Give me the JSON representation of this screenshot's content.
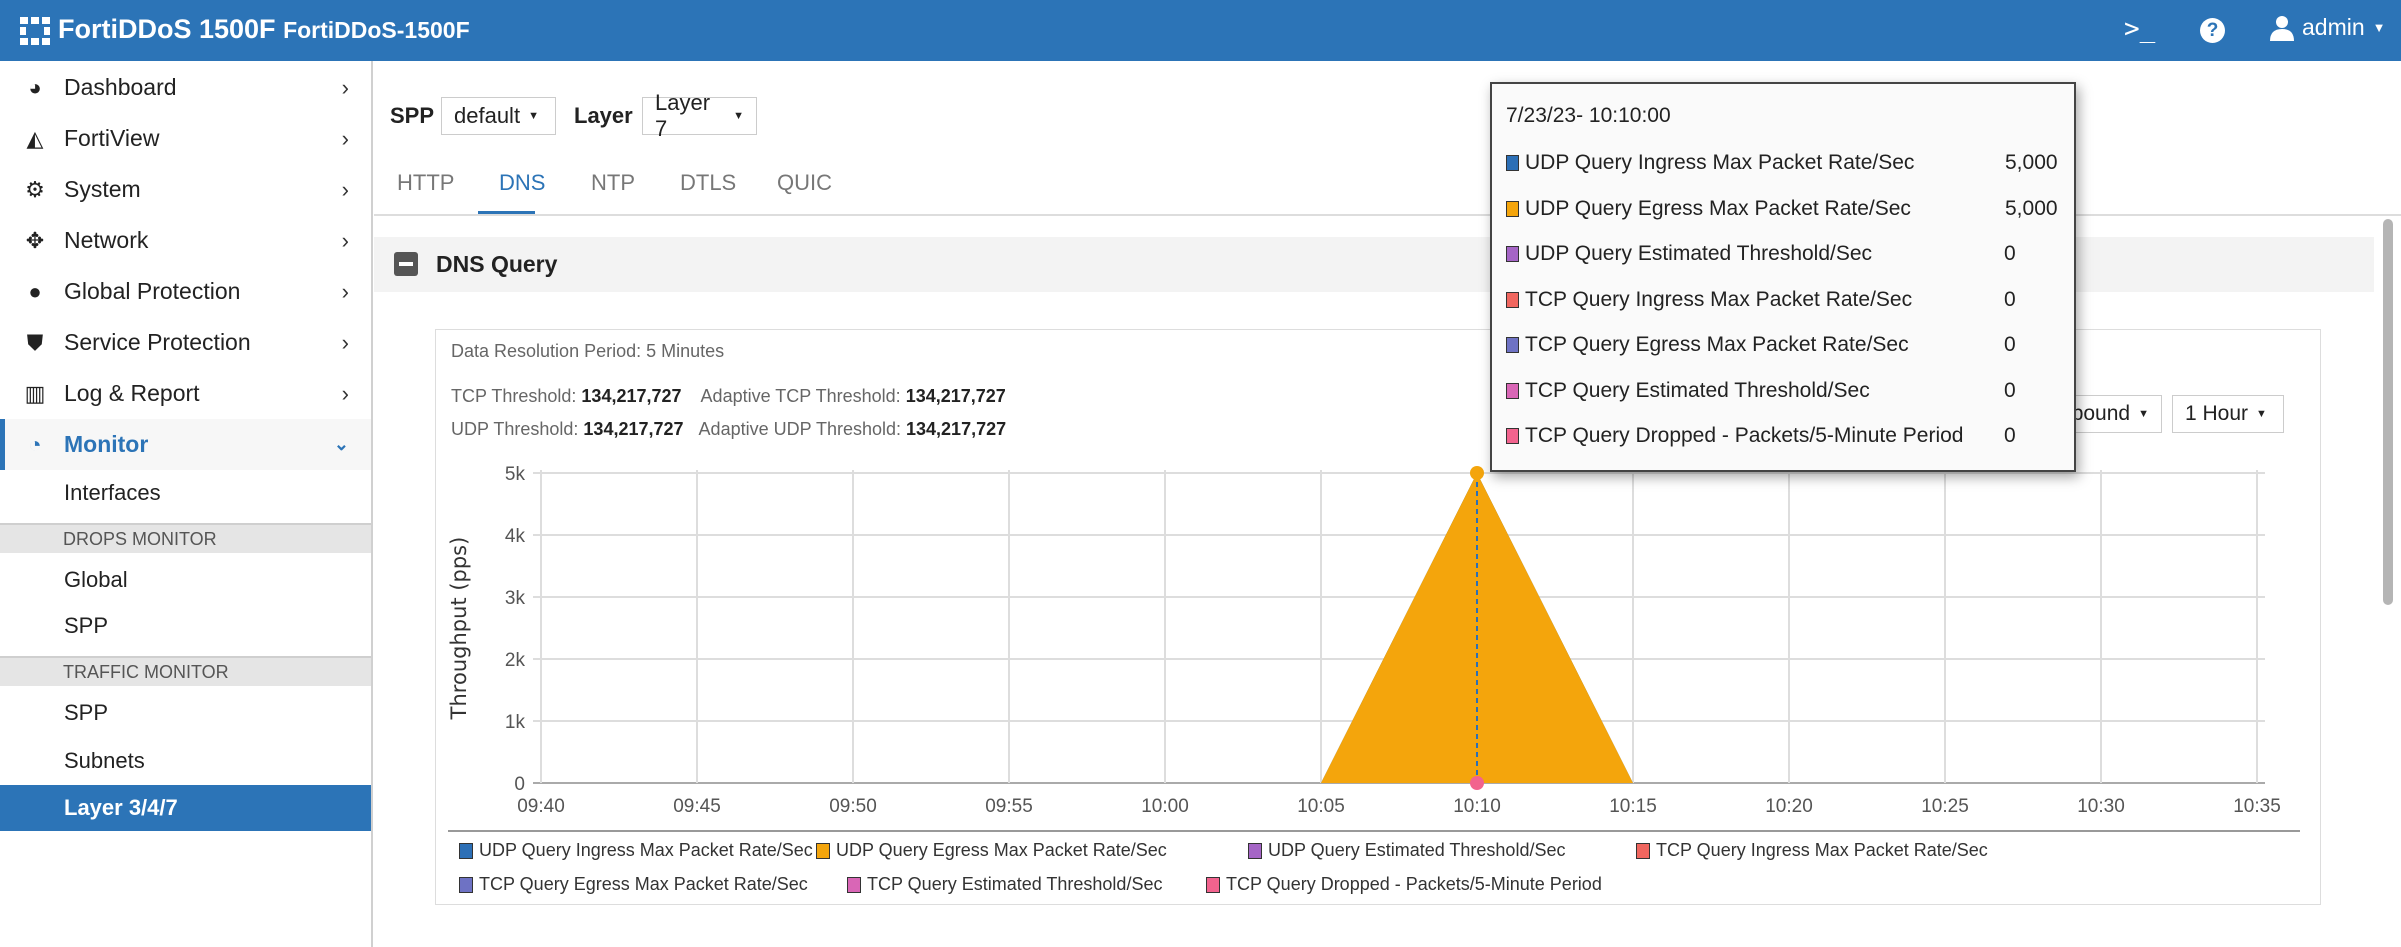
{
  "header": {
    "title": "FortiDDoS 1500F",
    "subtitle": "FortiDDoS-1500F",
    "cli_icon": "terminal-icon",
    "help_icon": "question-circle-icon",
    "user": "admin"
  },
  "sidebar": {
    "items": [
      {
        "label": "Dashboard",
        "icon": "dashboard-icon"
      },
      {
        "label": "FortiView",
        "icon": "area-chart-icon"
      },
      {
        "label": "System",
        "icon": "gear-icon"
      },
      {
        "label": "Network",
        "icon": "arrows-icon"
      },
      {
        "label": "Global Protection",
        "icon": "globe-icon"
      },
      {
        "label": "Service Protection",
        "icon": "shield-icon"
      },
      {
        "label": "Log & Report",
        "icon": "bar-chart-icon"
      },
      {
        "label": "Monitor",
        "icon": "pie-chart-icon"
      }
    ],
    "monitor_sub": {
      "interfaces": "Interfaces",
      "drops_header": "DROPS MONITOR",
      "drops": [
        "Global",
        "SPP"
      ],
      "traffic_header": "TRAFFIC MONITOR",
      "traffic": [
        "SPP",
        "Subnets",
        "Layer 3/4/7"
      ]
    }
  },
  "filters": {
    "spp_label": "SPP",
    "spp_value": "default",
    "layer_label": "Layer",
    "layer_value": "Layer 7"
  },
  "tabs": [
    "HTTP",
    "DNS",
    "NTP",
    "DTLS",
    "QUIC"
  ],
  "active_tab": "DNS",
  "panel": {
    "title": "DNS Query",
    "resolution": "Data Resolution Period: 5 Minutes",
    "tcp_threshold_label": "TCP Threshold:",
    "tcp_threshold": "134,217,727",
    "adaptive_tcp_label": "Adaptive TCP Threshold:",
    "adaptive_tcp": "134,217,727",
    "udp_threshold_label": "UDP Threshold:",
    "udp_threshold": "134,217,727",
    "adaptive_udp_label": "Adaptive UDP Threshold:",
    "adaptive_udp": "134,217,727",
    "direction_value": "Inbound",
    "period_value": "1 Hour"
  },
  "tooltip": {
    "time": "7/23/23- 10:10:00",
    "rows": [
      {
        "label": "UDP Query Ingress Max Packet Rate/Sec",
        "value": "5,000"
      },
      {
        "label": "UDP Query Egress Max Packet Rate/Sec",
        "value": "5,000"
      },
      {
        "label": "UDP Query Estimated Threshold/Sec",
        "value": "0"
      },
      {
        "label": "TCP Query Ingress Max Packet Rate/Sec",
        "value": "0"
      },
      {
        "label": "TCP Query Egress Max Packet Rate/Sec",
        "value": "0"
      },
      {
        "label": "TCP Query Estimated Threshold/Sec",
        "value": "0"
      },
      {
        "label": "TCP Query Dropped - Packets/5-Minute Period",
        "value": "0"
      }
    ]
  },
  "chart_data": {
    "type": "area",
    "ylabel": "Throughput (pps)",
    "xlabel": "",
    "ylim": [
      0,
      5000
    ],
    "yticks": [
      "0",
      "1k",
      "2k",
      "3k",
      "4k",
      "5k"
    ],
    "ytick_values": [
      0,
      1000,
      2000,
      3000,
      4000,
      5000
    ],
    "x": [
      "09:40",
      "09:45",
      "09:50",
      "09:55",
      "10:00",
      "10:05",
      "10:10",
      "10:15",
      "10:20",
      "10:25",
      "10:30",
      "10:35"
    ],
    "grid": true,
    "legend_position": "bottom",
    "series": [
      {
        "name": "UDP Query Ingress Max Packet Rate/Sec",
        "color": "#2c6fb6",
        "values": [
          0,
          0,
          0,
          0,
          0,
          0,
          5000,
          0,
          0,
          0,
          0,
          0
        ]
      },
      {
        "name": "UDP Query Egress Max Packet Rate/Sec",
        "color": "#f4a50c",
        "values": [
          0,
          0,
          0,
          0,
          0,
          0,
          5000,
          0,
          0,
          0,
          0,
          0
        ]
      },
      {
        "name": "UDP Query Estimated Threshold/Sec",
        "color": "#a565c6",
        "values": [
          0,
          0,
          0,
          0,
          0,
          0,
          0,
          0,
          0,
          0,
          0,
          0
        ]
      },
      {
        "name": "TCP Query Ingress Max Packet Rate/Sec",
        "color": "#f0665f",
        "values": [
          0,
          0,
          0,
          0,
          0,
          0,
          0,
          0,
          0,
          0,
          0,
          0
        ]
      },
      {
        "name": "TCP Query Egress Max Packet Rate/Sec",
        "color": "#6e72c4",
        "values": [
          0,
          0,
          0,
          0,
          0,
          0,
          0,
          0,
          0,
          0,
          0,
          0
        ]
      },
      {
        "name": "TCP Query Estimated Threshold/Sec",
        "color": "#d966b6",
        "values": [
          0,
          0,
          0,
          0,
          0,
          0,
          0,
          0,
          0,
          0,
          0,
          0
        ]
      },
      {
        "name": "TCP Query Dropped - Packets/5-Minute Period",
        "color": "#f2638e",
        "values": [
          0,
          0,
          0,
          0,
          0,
          0,
          0,
          0,
          0,
          0,
          0,
          0
        ]
      }
    ],
    "hover_x": "10:10"
  }
}
